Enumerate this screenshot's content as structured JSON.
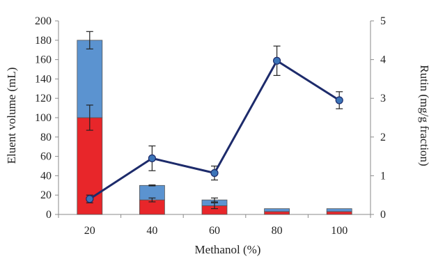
{
  "chart_data": {
    "type": "bar",
    "title": "",
    "xlabel": "Methanol (%)",
    "ylabel": "Eluent volume (mL)",
    "y2label": "Rutin (mg/g fraction)",
    "categories": [
      "20",
      "40",
      "60",
      "80",
      "100"
    ],
    "ylim": [
      0,
      200
    ],
    "y2lim": [
      0,
      5
    ],
    "yticks": [
      "0",
      "20",
      "40",
      "60",
      "80",
      "100",
      "120",
      "140",
      "160",
      "180",
      "200"
    ],
    "y2ticks": [
      "0",
      "1",
      "2",
      "3",
      "4",
      "5"
    ],
    "grid": false,
    "legend": "none",
    "stacked_series": [
      {
        "color": "#e8262a",
        "values": [
          100,
          15,
          9,
          3,
          3
        ],
        "error": [
          13,
          2,
          3,
          0,
          0
        ]
      },
      {
        "color": "#5b93d0",
        "values": [
          80,
          15,
          6,
          3,
          3
        ],
        "error": [
          9,
          0.5,
          2,
          0,
          0
        ]
      }
    ],
    "line_series": {
      "axis": "right",
      "color": "#1d2b6b",
      "values": [
        0.4,
        1.45,
        1.07,
        3.97,
        2.95
      ],
      "error": [
        0.1,
        0.32,
        0.18,
        0.38,
        0.22
      ]
    }
  }
}
